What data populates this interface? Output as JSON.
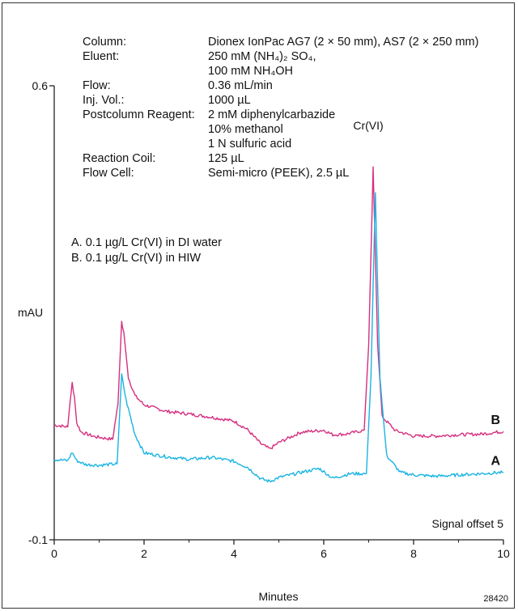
{
  "chart_data": {
    "type": "line",
    "xlabel": "Minutes",
    "ylabel": "mAU",
    "xlim": [
      0,
      10
    ],
    "ylim": [
      -0.1,
      0.6
    ],
    "x_ticks": [
      "0",
      "2",
      "4",
      "6",
      "8",
      "10"
    ],
    "y_ticks": [
      "0.6",
      "-0.1"
    ],
    "conditions": [
      {
        "label": "Column:",
        "value": "Dionex IonPac AG7 (2 × 50 mm), AS7 (2 × 250 mm)"
      },
      {
        "label": "Eluent:",
        "value": "250 mM (NH₄)₂ SO₄,"
      },
      {
        "label": "",
        "value": "100 mM NH₄OH"
      },
      {
        "label": "Flow:",
        "value": "0.36 mL/min"
      },
      {
        "label": "Inj. Vol.:",
        "value": "1000 µL"
      },
      {
        "label": "Postcolumn Reagent:",
        "value": "2 mM diphenylcarbazide"
      },
      {
        "label": "",
        "value": "10% methanol"
      },
      {
        "label": "",
        "value": "1 N sulfuric acid"
      },
      {
        "label": "Reaction Coil:",
        "value": "125 µL"
      },
      {
        "label": "Flow Cell:",
        "value": "Semi-micro (PEEK), 2.5 µL"
      }
    ],
    "sample_legend": [
      "A. 0.1 µg/L Cr(VI) in DI water",
      "B. 0.1 µg/L Cr(VI) in HIW"
    ],
    "peak_label": {
      "text": "Cr(VI)",
      "x": 7.1
    },
    "offset_note": "Signal offset 5",
    "figure_id": "28420",
    "series": [
      {
        "name": "B",
        "color": "#d62f7f",
        "points": [
          [
            0,
            0.077
          ],
          [
            0.3,
            0.074
          ],
          [
            0.35,
            0.11
          ],
          [
            0.4,
            0.142
          ],
          [
            0.45,
            0.12
          ],
          [
            0.5,
            0.08
          ],
          [
            0.6,
            0.066
          ],
          [
            0.9,
            0.059
          ],
          [
            1.3,
            0.055
          ],
          [
            1.42,
            0.11
          ],
          [
            1.5,
            0.236
          ],
          [
            1.55,
            0.22
          ],
          [
            1.65,
            0.15
          ],
          [
            1.8,
            0.122
          ],
          [
            2.0,
            0.108
          ],
          [
            2.5,
            0.098
          ],
          [
            3.0,
            0.094
          ],
          [
            3.5,
            0.089
          ],
          [
            4.0,
            0.083
          ],
          [
            4.3,
            0.07
          ],
          [
            4.6,
            0.048
          ],
          [
            4.8,
            0.04
          ],
          [
            5.0,
            0.05
          ],
          [
            5.5,
            0.066
          ],
          [
            6.0,
            0.069
          ],
          [
            6.2,
            0.062
          ],
          [
            6.5,
            0.063
          ],
          [
            6.9,
            0.069
          ],
          [
            7.0,
            0.2
          ],
          [
            7.1,
            0.475
          ],
          [
            7.2,
            0.2
          ],
          [
            7.3,
            0.09
          ],
          [
            7.6,
            0.068
          ],
          [
            8.0,
            0.06
          ],
          [
            8.5,
            0.06
          ],
          [
            9.0,
            0.062
          ],
          [
            9.5,
            0.063
          ],
          [
            10.0,
            0.067
          ]
        ]
      },
      {
        "name": "A",
        "color": "#19b4e3",
        "points": [
          [
            0,
            0.024
          ],
          [
            0.3,
            0.022
          ],
          [
            0.4,
            0.035
          ],
          [
            0.5,
            0.022
          ],
          [
            0.7,
            0.016
          ],
          [
            1.0,
            0.015
          ],
          [
            1.4,
            0.017
          ],
          [
            1.5,
            0.155
          ],
          [
            1.6,
            0.115
          ],
          [
            1.8,
            0.062
          ],
          [
            2.0,
            0.034
          ],
          [
            2.5,
            0.028
          ],
          [
            3.0,
            0.024
          ],
          [
            3.5,
            0.027
          ],
          [
            4.0,
            0.021
          ],
          [
            4.3,
            0.012
          ],
          [
            4.6,
            -0.006
          ],
          [
            4.8,
            -0.01
          ],
          [
            5.0,
            -0.004
          ],
          [
            5.5,
            0.004
          ],
          [
            5.9,
            0.01
          ],
          [
            6.2,
            -0.005
          ],
          [
            6.6,
            0.002
          ],
          [
            6.95,
            0.002
          ],
          [
            7.05,
            0.15
          ],
          [
            7.15,
            0.435
          ],
          [
            7.25,
            0.15
          ],
          [
            7.4,
            0.03
          ],
          [
            7.7,
            0.004
          ],
          [
            8.0,
            0.0
          ],
          [
            8.5,
            -0.002
          ],
          [
            9.0,
            0.0
          ],
          [
            9.5,
            0.002
          ],
          [
            10.0,
            0.004
          ]
        ]
      }
    ]
  }
}
